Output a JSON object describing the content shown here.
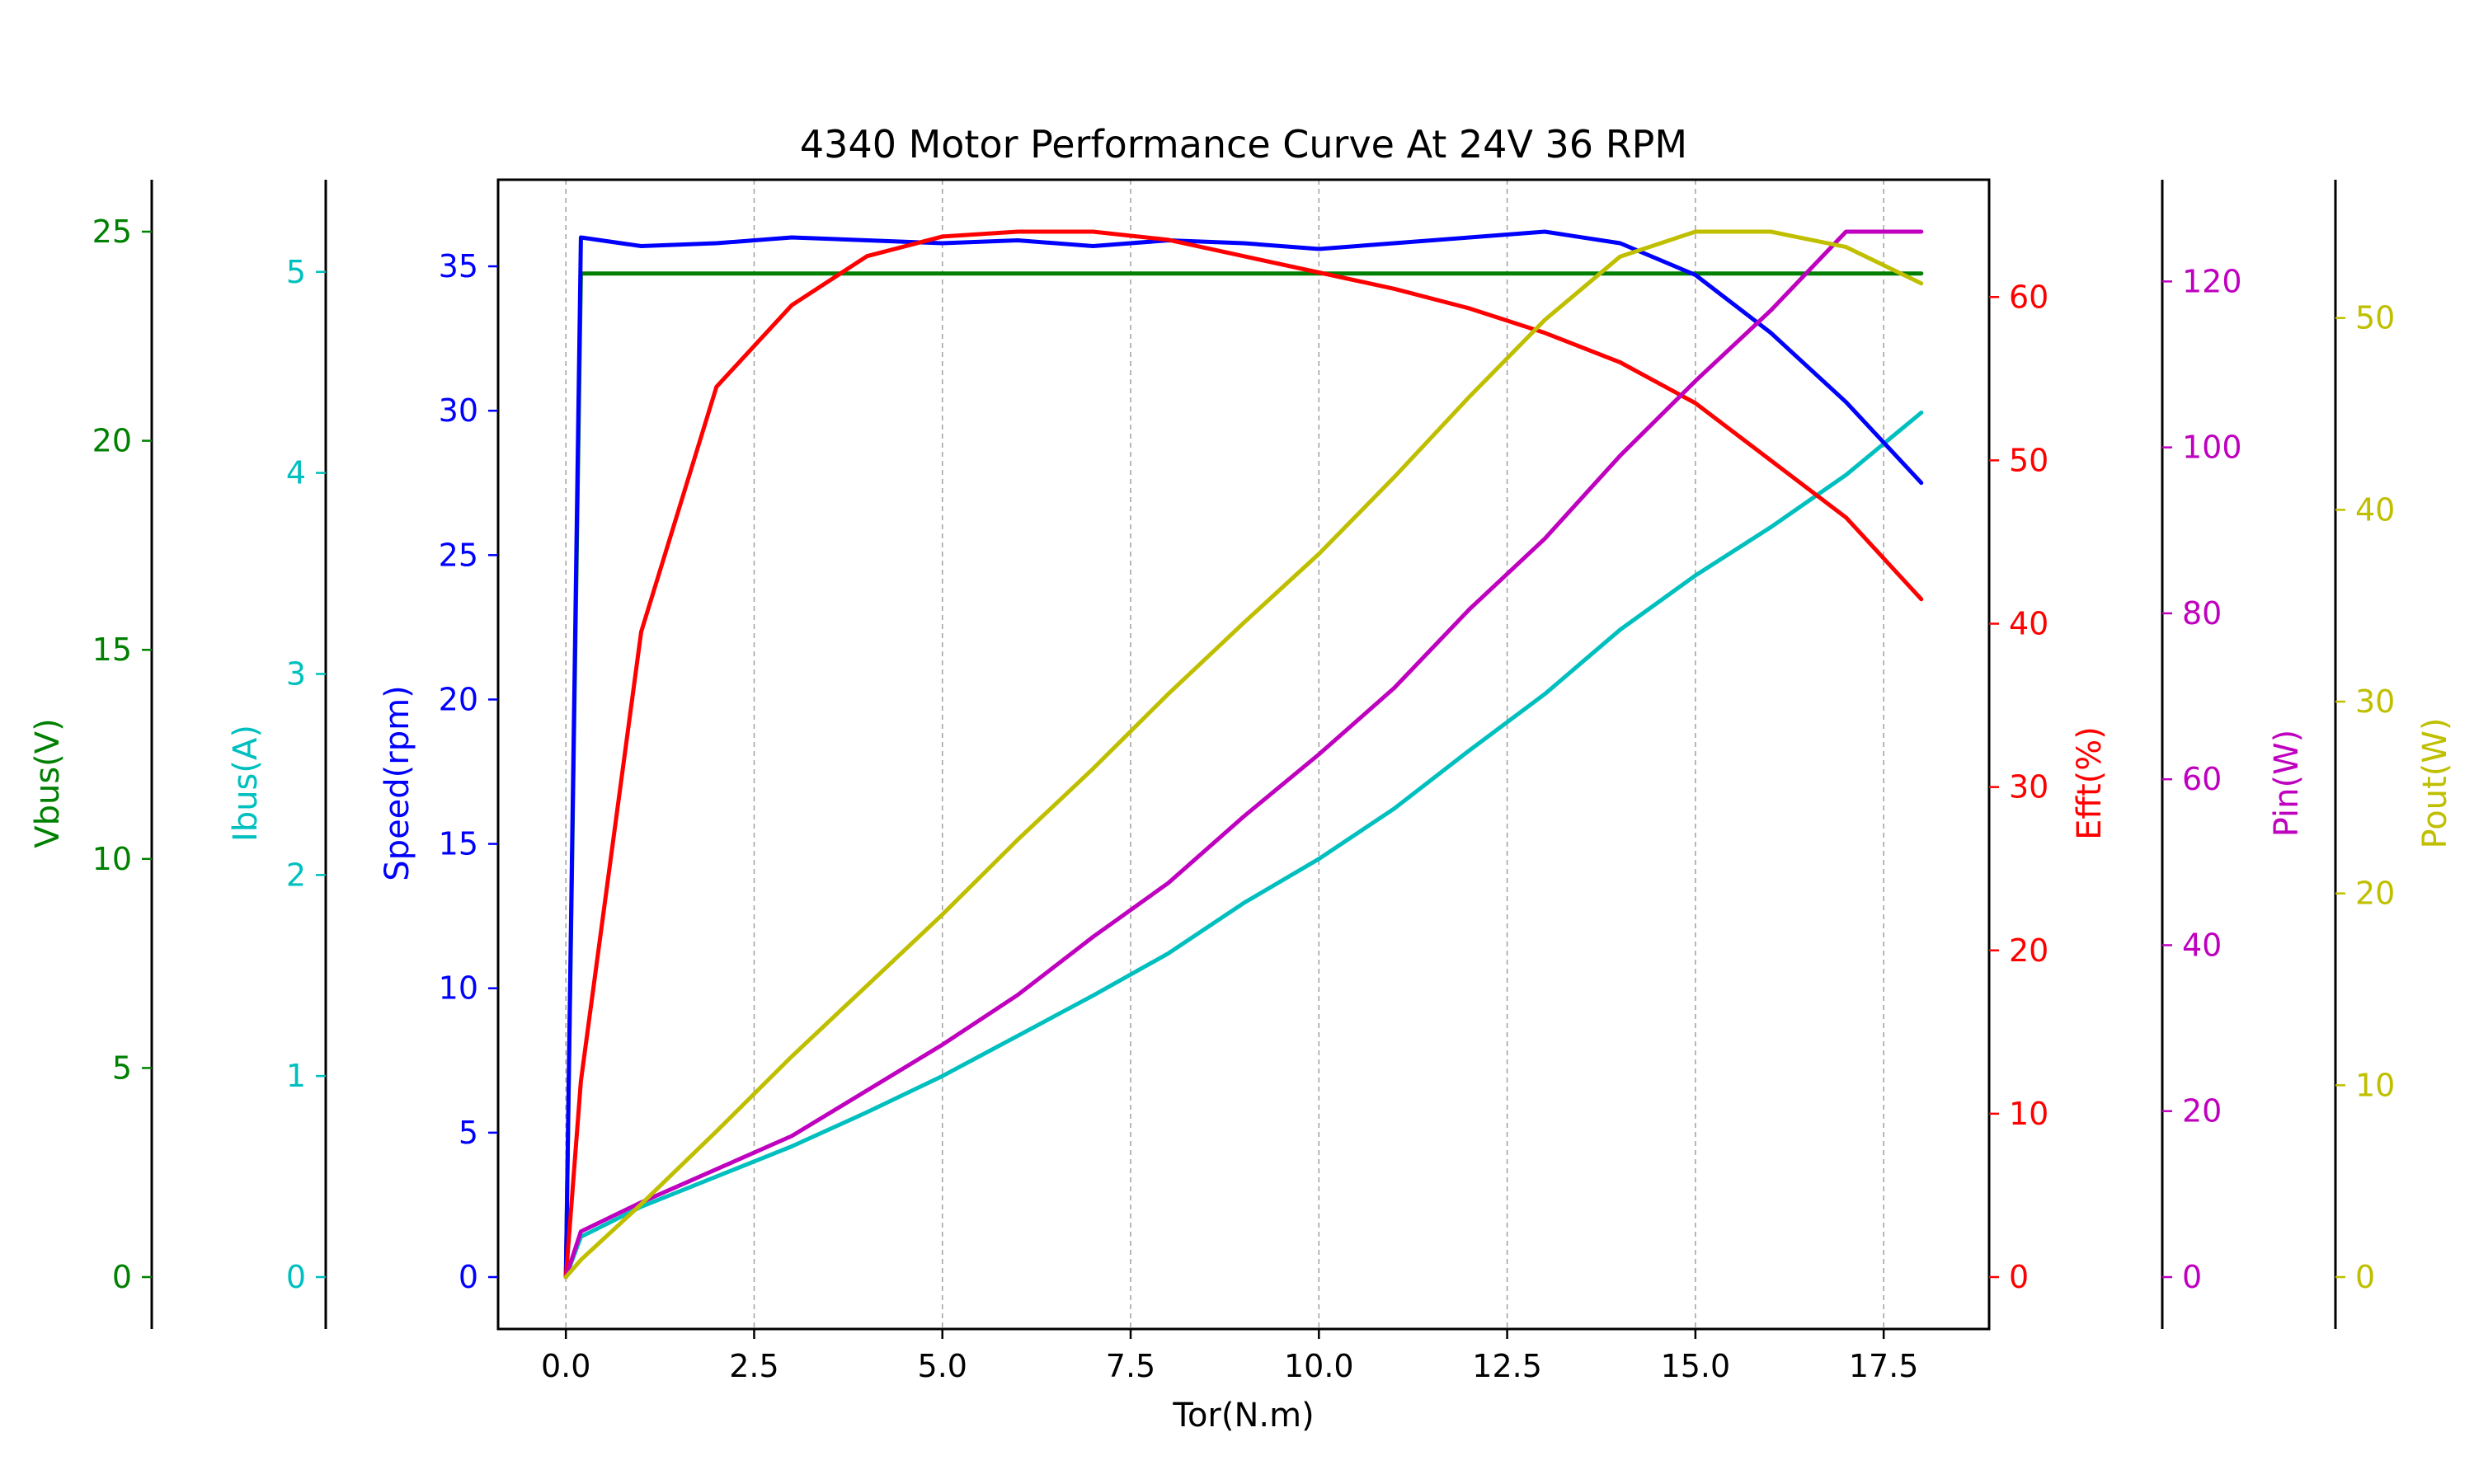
{
  "chart_data": {
    "type": "line",
    "title": "4340 Motor Performance Curve At 24V 36 RPM",
    "xlabel": "Tor(N.m)",
    "xlim": [
      -0.9,
      18.9
    ],
    "x_ticks": [
      "0.0",
      "2.5",
      "5.0",
      "7.5",
      "10.0",
      "12.5",
      "15.0",
      "17.5"
    ],
    "x_tick_values": [
      0,
      2.5,
      5,
      7.5,
      10,
      12.5,
      15,
      17.5
    ],
    "grid": "vertical dashed",
    "legend": "none",
    "x": [
      0,
      0.2,
      1,
      2,
      3,
      4,
      5,
      6,
      7,
      8,
      9,
      10,
      11,
      12,
      13,
      14,
      15,
      16,
      17,
      18
    ],
    "axes": [
      {
        "key": "vbus",
        "label": "Vbus(V)",
        "side": "left",
        "color": "#008000",
        "ylim": [
          0,
          25
        ],
        "ticks": [
          "0",
          "5",
          "10",
          "15",
          "20",
          "25"
        ],
        "tick_values": [
          0,
          5,
          10,
          15,
          20,
          25
        ]
      },
      {
        "key": "ibus",
        "label": "Ibus(A)",
        "side": "left",
        "color": "#00bfbf",
        "ylim": [
          0,
          5.2
        ],
        "ticks": [
          "0",
          "1",
          "2",
          "3",
          "4",
          "5"
        ],
        "tick_values": [
          0,
          1,
          2,
          3,
          4,
          5
        ]
      },
      {
        "key": "speed",
        "label": "Speed(rpm)",
        "side": "left",
        "color": "#0000ff",
        "ylim": [
          0,
          36.2
        ],
        "ticks": [
          "0",
          "5",
          "10",
          "15",
          "20",
          "25",
          "30",
          "35"
        ],
        "tick_values": [
          0,
          5,
          10,
          15,
          20,
          25,
          30,
          35
        ]
      },
      {
        "key": "efft",
        "label": "Efft(%)",
        "side": "right",
        "color": "#ff0000",
        "ylim": [
          0,
          64
        ],
        "ticks": [
          "0",
          "10",
          "20",
          "30",
          "40",
          "50",
          "60"
        ],
        "tick_values": [
          0,
          10,
          20,
          30,
          40,
          50,
          60
        ]
      },
      {
        "key": "pin",
        "label": "Pin(W)",
        "side": "right",
        "color": "#bf00bf",
        "ylim": [
          0,
          126
        ],
        "ticks": [
          "0",
          "20",
          "40",
          "60",
          "80",
          "100",
          "120"
        ],
        "tick_values": [
          0,
          20,
          40,
          60,
          80,
          100,
          120
        ]
      },
      {
        "key": "pout",
        "label": "Pout(W)",
        "side": "right",
        "color": "#bfbf00",
        "ylim": [
          0,
          54.5
        ],
        "ticks": [
          "0",
          "10",
          "20",
          "30",
          "40",
          "50"
        ],
        "tick_values": [
          0,
          10,
          20,
          30,
          40,
          50
        ]
      }
    ],
    "series": [
      {
        "axis": "vbus",
        "color": "#008000",
        "values": [
          0,
          24,
          24,
          24,
          24,
          24,
          24,
          24,
          24,
          24,
          24,
          24,
          24,
          24,
          24,
          24,
          24,
          24,
          24,
          24
        ]
      },
      {
        "axis": "ibus",
        "color": "#00bfbf",
        "values": [
          0,
          0.2,
          0.35,
          0.5,
          0.65,
          0.82,
          1.0,
          1.2,
          1.4,
          1.61,
          1.86,
          2.08,
          2.33,
          2.62,
          2.9,
          3.22,
          3.49,
          3.73,
          3.99,
          4.3
        ]
      },
      {
        "axis": "speed",
        "color": "#0000ff",
        "values": [
          0,
          36,
          35.7,
          35.8,
          36.0,
          35.9,
          35.8,
          35.9,
          35.7,
          35.9,
          35.8,
          35.6,
          35.8,
          36.0,
          36.2,
          35.8,
          34.7,
          32.7,
          30.3,
          27.5
        ]
      },
      {
        "axis": "efft",
        "color": "#ff0000",
        "values": [
          0,
          12,
          39.5,
          54.5,
          59.5,
          62.5,
          63.7,
          64,
          64,
          63.5,
          62.5,
          61.5,
          60.5,
          59.3,
          57.8,
          56,
          53.5,
          50,
          46.5,
          41.5
        ]
      },
      {
        "axis": "pin",
        "color": "#bf00bf",
        "values": [
          0,
          5.5,
          9,
          13,
          17,
          22.5,
          28,
          34,
          41,
          47.5,
          55.5,
          63,
          71,
          80.5,
          89,
          99,
          108,
          116.5,
          126,
          126
        ]
      },
      {
        "axis": "pout",
        "color": "#bfbf00",
        "values": [
          0,
          0.9,
          3.8,
          7.6,
          11.5,
          15.2,
          18.9,
          22.8,
          26.5,
          30.4,
          34.1,
          37.7,
          41.7,
          45.9,
          49.9,
          53.2,
          54.5,
          54.5,
          53.7,
          51.8
        ]
      }
    ]
  }
}
